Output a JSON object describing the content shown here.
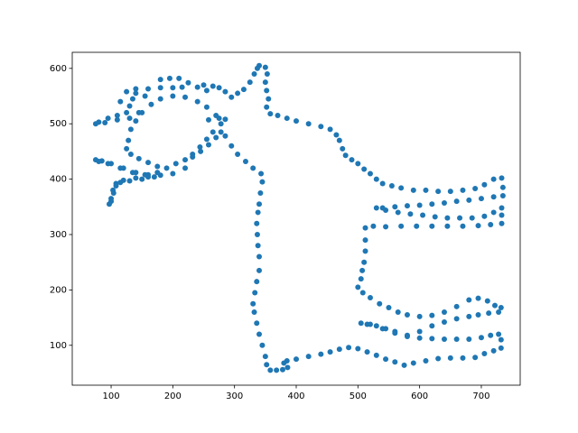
{
  "chart_data": {
    "type": "scatter",
    "color": "#1f77b4",
    "x": [
      340,
      350,
      353,
      350,
      352,
      355,
      352,
      358,
      370,
      385,
      400,
      420,
      440,
      455,
      465,
      470,
      475,
      480,
      490,
      500,
      510,
      520,
      530,
      540,
      555,
      570,
      590,
      610,
      630,
      650,
      670,
      690,
      705,
      720,
      733,
      735,
      735,
      720,
      700,
      680,
      660,
      640,
      620,
      600,
      580,
      560,
      540,
      530,
      545,
      565,
      585,
      605,
      625,
      645,
      665,
      685,
      705,
      720,
      733,
      733,
      733,
      715,
      695,
      670,
      645,
      620,
      595,
      570,
      545,
      525,
      512,
      512,
      512,
      510,
      507,
      505,
      500,
      508,
      520,
      535,
      550,
      565,
      580,
      600,
      620,
      640,
      660,
      680,
      695,
      710,
      722,
      732,
      728,
      712,
      695,
      680,
      660,
      640,
      620,
      600,
      580,
      560,
      545,
      530,
      515,
      505,
      520,
      540,
      560,
      580,
      600,
      620,
      640,
      660,
      680,
      700,
      715,
      728,
      732,
      732,
      720,
      705,
      690,
      670,
      650,
      630,
      610,
      590,
      575,
      560,
      545,
      530,
      515,
      500,
      485,
      470,
      455,
      440,
      420,
      400,
      385,
      380,
      386,
      378,
      368,
      358,
      352,
      350,
      345,
      340,
      336,
      332,
      330,
      333,
      336,
      340,
      340,
      338,
      337,
      336,
      338,
      340,
      342,
      345,
      343,
      330,
      318,
      305,
      295,
      285,
      278,
      270,
      258,
      245,
      232,
      220,
      200,
      180,
      160,
      140,
      120,
      108,
      103,
      100,
      97,
      100,
      104,
      108,
      115,
      130,
      150,
      170,
      160,
      140,
      120,
      100,
      85,
      75,
      80,
      95,
      115,
      135,
      155,
      175,
      190,
      205,
      220,
      232,
      244,
      255,
      265,
      278,
      285,
      275,
      258,
      270,
      255,
      240,
      220,
      200,
      180,
      165,
      150,
      140,
      132,
      128,
      125,
      132,
      145,
      160,
      175,
      125,
      110,
      95,
      80,
      75,
      90,
      110,
      130,
      145,
      130,
      115,
      135,
      155,
      140,
      125,
      140,
      160,
      180,
      200,
      215,
      180,
      195,
      210,
      225,
      240,
      255,
      250,
      265,
      275,
      285,
      295,
      305,
      315,
      325,
      332,
      337
    ],
    "y": [
      605,
      602,
      590,
      575,
      560,
      545,
      530,
      518,
      515,
      510,
      505,
      500,
      495,
      490,
      480,
      470,
      455,
      443,
      435,
      428,
      418,
      410,
      400,
      392,
      388,
      384,
      380,
      380,
      378,
      378,
      380,
      383,
      390,
      400,
      402,
      385,
      370,
      368,
      365,
      362,
      360,
      357,
      355,
      353,
      352,
      350,
      348,
      348,
      344,
      340,
      337,
      335,
      332,
      330,
      330,
      330,
      333,
      340,
      348,
      335,
      320,
      318,
      316,
      315,
      315,
      315,
      315,
      315,
      314,
      315,
      312,
      290,
      270,
      250,
      235,
      220,
      205,
      195,
      186,
      175,
      168,
      160,
      155,
      152,
      154,
      160,
      170,
      182,
      185,
      180,
      172,
      168,
      160,
      158,
      155,
      152,
      148,
      142,
      135,
      125,
      118,
      125,
      130,
      135,
      138,
      140,
      138,
      130,
      122,
      116,
      113,
      112,
      111,
      111,
      111,
      114,
      118,
      120,
      110,
      95,
      90,
      85,
      78,
      77,
      77,
      76,
      72,
      68,
      64,
      70,
      75,
      82,
      88,
      94,
      96,
      93,
      88,
      84,
      80,
      75,
      72,
      68,
      60,
      56,
      55,
      55,
      65,
      80,
      100,
      120,
      140,
      160,
      175,
      195,
      215,
      235,
      260,
      280,
      300,
      320,
      340,
      355,
      375,
      395,
      410,
      420,
      432,
      445,
      460,
      478,
      485,
      475,
      462,
      450,
      440,
      420,
      410,
      407,
      404,
      402,
      398,
      392,
      380,
      365,
      355,
      360,
      375,
      388,
      394,
      397,
      400,
      404,
      408,
      412,
      420,
      428,
      433,
      435,
      432,
      428,
      420,
      412,
      408,
      412,
      420,
      428,
      435,
      445,
      458,
      472,
      485,
      500,
      508,
      510,
      507,
      515,
      530,
      540,
      548,
      550,
      545,
      535,
      520,
      505,
      490,
      470,
      455,
      445,
      437,
      430,
      423,
      520,
      515,
      510,
      503,
      500,
      502,
      507,
      510,
      520,
      532,
      540,
      545,
      550,
      555,
      558,
      563,
      563,
      565,
      565,
      566,
      580,
      582,
      582,
      574,
      566,
      560,
      570,
      568,
      565,
      558,
      548,
      555,
      562,
      575,
      590,
      600
    ],
    "xlim": [
      37,
      763
    ],
    "ylim": [
      28,
      629
    ],
    "xticks": [
      100,
      200,
      300,
      400,
      500,
      600,
      700
    ],
    "yticks": [
      100,
      200,
      300,
      400,
      500,
      600
    ]
  }
}
